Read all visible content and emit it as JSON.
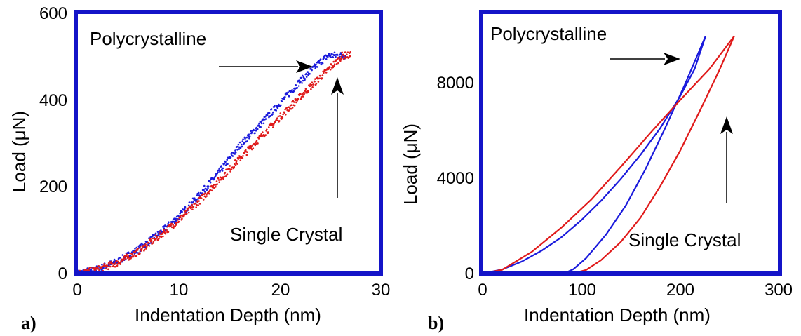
{
  "chart_data": [
    {
      "type": "scatter",
      "panel_label": "a)",
      "xlabel": "Indentation Depth (nm)",
      "ylabel": "Load (μN)",
      "xlim": [
        0,
        30
      ],
      "ylim": [
        0,
        600
      ],
      "x_ticks": [
        "0",
        "10",
        "20",
        "30"
      ],
      "y_ticks": [
        "0",
        "200",
        "400",
        "600"
      ],
      "grid": false,
      "annotations": [
        "Polycrystalline",
        "Single Crystal"
      ],
      "series": [
        {
          "color": "#1a1adc",
          "points": [
            [
              0,
              0
            ],
            [
              2,
              10
            ],
            [
              4,
              28
            ],
            [
              6,
              55
            ],
            [
              8,
              90
            ],
            [
              10,
              130
            ],
            [
              12,
              178
            ],
            [
              14,
              232
            ],
            [
              16,
              292
            ],
            [
              18,
              340
            ],
            [
              20,
              390
            ],
            [
              22,
              440
            ],
            [
              24,
              485
            ],
            [
              24.8,
              500
            ],
            [
              26.5,
              500
            ]
          ]
        },
        {
          "color": "#e01a1a",
          "points": [
            [
              0,
              0
            ],
            [
              2,
              9
            ],
            [
              4,
              25
            ],
            [
              6,
              50
            ],
            [
              8,
              84
            ],
            [
              10,
              122
            ],
            [
              12,
              165
            ],
            [
              14,
              214
            ],
            [
              16,
              262
            ],
            [
              18,
              310
            ],
            [
              20,
              358
            ],
            [
              22,
              405
            ],
            [
              24,
              450
            ],
            [
              25.6,
              486
            ],
            [
              26.2,
              500
            ],
            [
              27,
              500
            ]
          ]
        }
      ]
    },
    {
      "type": "line",
      "panel_label": "b)",
      "xlabel": "Indentation Depth (nm)",
      "ylabel": "Load (μN)",
      "xlim": [
        0,
        300
      ],
      "ylim": [
        0,
        10800
      ],
      "x_ticks": [
        "0",
        "100",
        "200",
        "300"
      ],
      "y_ticks": [
        "0",
        "4000",
        "8000"
      ],
      "grid": false,
      "annotations": [
        "Polycrystalline",
        "Single Crystal"
      ],
      "series": [
        {
          "color": "#1a1adc",
          "loading": [
            [
              0,
              0
            ],
            [
              20,
              170
            ],
            [
              40,
              500
            ],
            [
              60,
              950
            ],
            [
              80,
              1500
            ],
            [
              100,
              2200
            ],
            [
              120,
              3000
            ],
            [
              140,
              3900
            ],
            [
              160,
              4900
            ],
            [
              180,
              6000
            ],
            [
              200,
              7300
            ],
            [
              215,
              8450
            ],
            [
              226,
              9800
            ]
          ],
          "unloading": [
            [
              226,
              9800
            ],
            [
              205,
              7800
            ],
            [
              185,
              6000
            ],
            [
              165,
              4300
            ],
            [
              145,
              2800
            ],
            [
              125,
              1600
            ],
            [
              105,
              640
            ],
            [
              92,
              180
            ],
            [
              85,
              50
            ],
            [
              75,
              0
            ]
          ]
        },
        {
          "color": "#e01a1a",
          "loading": [
            [
              0,
              0
            ],
            [
              20,
              160
            ],
            [
              50,
              900
            ],
            [
              80,
              1900
            ],
            [
              110,
              3050
            ],
            [
              140,
              4400
            ],
            [
              170,
              5800
            ],
            [
              200,
              7150
            ],
            [
              230,
              8450
            ],
            [
              255,
              9800
            ]
          ],
          "unloading": [
            [
              255,
              9800
            ],
            [
              240,
              8400
            ],
            [
              220,
              6700
            ],
            [
              200,
              5050
            ],
            [
              180,
              3600
            ],
            [
              160,
              2300
            ],
            [
              140,
              1300
            ],
            [
              120,
              550
            ],
            [
              105,
              150
            ],
            [
              95,
              40
            ],
            [
              88,
              0
            ]
          ]
        }
      ]
    }
  ]
}
